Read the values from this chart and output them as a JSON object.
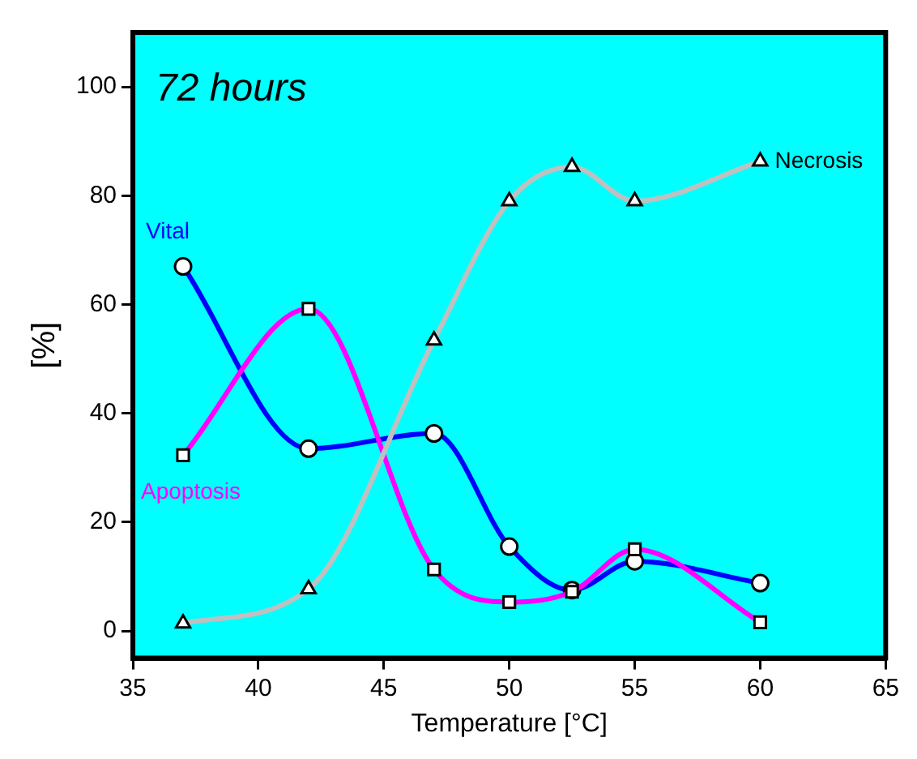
{
  "chart_data": {
    "type": "line",
    "title": "72 hours",
    "xlabel": "Temperature [°C]",
    "ylabel": "[%]",
    "x": [
      37,
      42,
      47,
      50,
      52.5,
      55,
      60
    ],
    "series": [
      {
        "name": "Vital",
        "color": "#0000ff",
        "marker": "circle",
        "values": [
          67,
          33.5,
          36.3,
          15.5,
          7.5,
          12.8,
          8.8
        ]
      },
      {
        "name": "Apoptosis",
        "color": "#ff00ff",
        "marker": "square",
        "values": [
          32.3,
          59.2,
          11.3,
          5.3,
          7.2,
          15,
          1.6
        ]
      },
      {
        "name": "Necrosis",
        "color": "#c0c0c0",
        "marker": "triangle",
        "values": [
          1.4,
          7.7,
          53.4,
          79,
          85.3,
          79,
          86.3
        ]
      }
    ],
    "xlim": [
      35,
      65
    ],
    "xticks": [
      35,
      40,
      45,
      50,
      55,
      60,
      65
    ],
    "ylim": [
      -5,
      110
    ],
    "yticks": [
      0,
      20,
      40,
      60,
      80,
      100
    ],
    "grid": false,
    "legend": false
  }
}
